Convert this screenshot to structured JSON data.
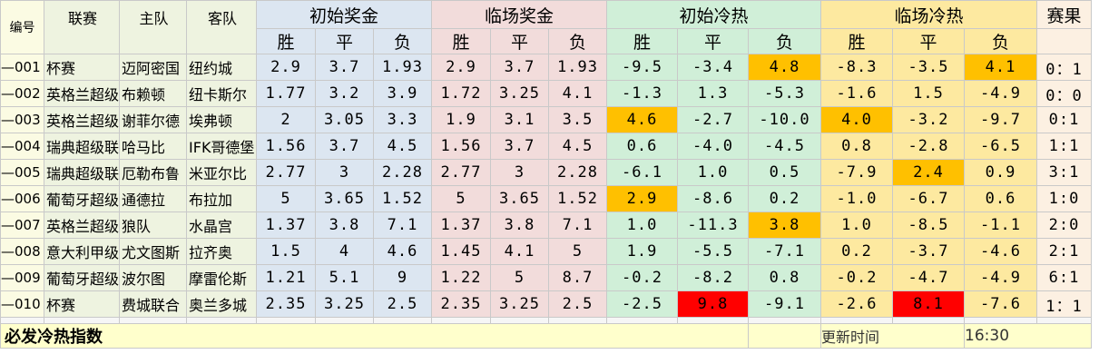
{
  "headers": {
    "id": "编号",
    "league": "联赛",
    "home": "主队",
    "away": "客队",
    "init_prize": "初始奖金",
    "live_prize": "临场奖金",
    "init_heat": "初始冷热",
    "live_heat": "临场冷热",
    "result": "赛果",
    "win": "胜",
    "draw": "平",
    "lose": "负"
  },
  "rows": [
    {
      "id": "—001",
      "league": "杯赛",
      "home": "迈阿密国",
      "away": "纽约城",
      "ip": [
        "2.9",
        "3.7",
        "1.93"
      ],
      "lp": [
        "2.9",
        "3.7",
        "1.93"
      ],
      "ih": [
        "-9.5",
        "-3.4",
        "4.8"
      ],
      "lh": [
        "-8.3",
        "-3.5",
        "4.1"
      ],
      "res": "0：1"
    },
    {
      "id": "—002",
      "league": "英格兰超级",
      "home": "布赖顿",
      "away": "纽卡斯尔",
      "ip": [
        "1.77",
        "3.2",
        "3.9"
      ],
      "lp": [
        "1.72",
        "3.25",
        "4.1"
      ],
      "ih": [
        "-1.3",
        "1.3",
        "-5.3"
      ],
      "lh": [
        "-1.6",
        "1.5",
        "-4.9"
      ],
      "res": "0：0"
    },
    {
      "id": "—003",
      "league": "英格兰超级",
      "home": "谢菲尔德",
      "away": "埃弗顿",
      "ip": [
        "2",
        "3.05",
        "3.3"
      ],
      "lp": [
        "1.9",
        "3.1",
        "3.5"
      ],
      "ih": [
        "4.6",
        "-2.7",
        "-10.0"
      ],
      "lh": [
        "4.0",
        "-3.2",
        "-9.7"
      ],
      "res": "0:1"
    },
    {
      "id": "—004",
      "league": "瑞典超级联",
      "home": "哈马比",
      "away": "IFK哥德堡",
      "ip": [
        "1.56",
        "3.7",
        "4.5"
      ],
      "lp": [
        "1.56",
        "3.7",
        "4.5"
      ],
      "ih": [
        "0.6",
        "-4.0",
        "-4.5"
      ],
      "lh": [
        "0.8",
        "-2.8",
        "-6.5"
      ],
      "res": "1:1"
    },
    {
      "id": "—005",
      "league": "瑞典超级联",
      "home": "厄勒布鲁",
      "away": "米亚尔比",
      "ip": [
        "2.77",
        "3",
        "2.28"
      ],
      "lp": [
        "2.77",
        "3",
        "2.28"
      ],
      "ih": [
        "-6.1",
        "1.0",
        "0.5"
      ],
      "lh": [
        "-7.9",
        "2.4",
        "0.9"
      ],
      "res": "3:1"
    },
    {
      "id": "—006",
      "league": "葡萄牙超级",
      "home": "通德拉",
      "away": "布拉加",
      "ip": [
        "5",
        "3.65",
        "1.52"
      ],
      "lp": [
        "5",
        "3.65",
        "1.52"
      ],
      "ih": [
        "2.9",
        "-8.6",
        "0.2"
      ],
      "lh": [
        "-1.0",
        "-6.7",
        "0.6"
      ],
      "res": "1:0"
    },
    {
      "id": "—007",
      "league": "英格兰超级",
      "home": "狼队",
      "away": "水晶宫",
      "ip": [
        "1.37",
        "3.8",
        "7.1"
      ],
      "lp": [
        "1.37",
        "3.8",
        "7.1"
      ],
      "ih": [
        "1.0",
        "-11.3",
        "3.8"
      ],
      "lh": [
        "1.0",
        "-8.5",
        "-1.1"
      ],
      "res": "2:0"
    },
    {
      "id": "—008",
      "league": "意大利甲级",
      "home": "尤文图斯",
      "away": "拉齐奥",
      "ip": [
        "1.5",
        "4",
        "4.6"
      ],
      "lp": [
        "1.45",
        "4.1",
        "5"
      ],
      "ih": [
        "1.9",
        "-5.5",
        "-7.1"
      ],
      "lh": [
        "0.2",
        "-3.7",
        "-4.6"
      ],
      "res": "2:1"
    },
    {
      "id": "—009",
      "league": "葡萄牙超级",
      "home": "波尔图",
      "away": "摩雷伦斯",
      "ip": [
        "1.21",
        "5.1",
        "9"
      ],
      "lp": [
        "1.22",
        "5",
        "8.7"
      ],
      "ih": [
        "-0.2",
        "-8.2",
        "0.8"
      ],
      "lh": [
        "-0.2",
        "-4.7",
        "-4.9"
      ],
      "res": "6:1"
    },
    {
      "id": "—010",
      "league": "杯赛",
      "home": "费城联合",
      "away": "奥兰多城",
      "ip": [
        "2.35",
        "3.25",
        "2.5"
      ],
      "lp": [
        "2.35",
        "3.25",
        "2.5"
      ],
      "ih": [
        "-2.5",
        "9.8",
        "-9.1"
      ],
      "lh": [
        "-2.6",
        "8.1",
        "-7.6"
      ],
      "res": "1：1"
    }
  ],
  "highlights": {
    "orange_hex": "#ffc000",
    "red_hex": "#ff0000",
    "cells": [
      {
        "row": 0,
        "grp": "ih",
        "col": 2,
        "color": "orange"
      },
      {
        "row": 0,
        "grp": "lh",
        "col": 2,
        "color": "orange"
      },
      {
        "row": 2,
        "grp": "ih",
        "col": 0,
        "color": "orange"
      },
      {
        "row": 2,
        "grp": "lh",
        "col": 0,
        "color": "orange"
      },
      {
        "row": 4,
        "grp": "lh",
        "col": 1,
        "color": "orange"
      },
      {
        "row": 5,
        "grp": "ih",
        "col": 0,
        "color": "orange"
      },
      {
        "row": 6,
        "grp": "ih",
        "col": 2,
        "color": "orange"
      },
      {
        "row": 9,
        "grp": "ih",
        "col": 1,
        "color": "red"
      },
      {
        "row": 9,
        "grp": "lh",
        "col": 1,
        "color": "red"
      }
    ]
  },
  "footer": {
    "title": "必发冷热指数",
    "update_label": "更新时间",
    "update_time": "16:30"
  }
}
